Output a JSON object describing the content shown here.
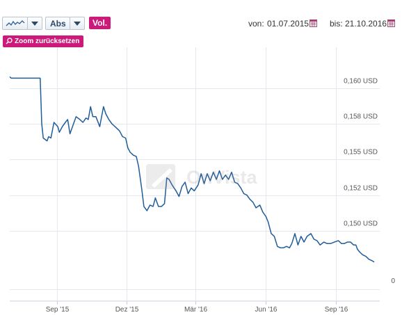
{
  "toolbar": {
    "scale_label": "Abs",
    "vol_label": "Vol.",
    "zoom_reset_label": "Zoom zurücksetzen",
    "icons": [
      "line-chart-icon",
      "chevron-down-icon",
      "calendar-icon",
      "magnifier-icon"
    ]
  },
  "range": {
    "from_label": "von:",
    "from_value": "01.07.2015",
    "to_label": "bis:",
    "to_value": "21.10.2016"
  },
  "watermark": "OnVista",
  "colors": {
    "line": "#1f5c99",
    "accent": "#cc1a7a",
    "grid": "#e3e8ee",
    "label": "#555555"
  },
  "chart_data": {
    "type": "line",
    "currency": "USD",
    "x_start": "2015-07-01",
    "x_end": "2016-10-21",
    "ylim": [
      0.1475,
      0.1615
    ],
    "y_ticks": [
      {
        "value": 0.15,
        "label": "0,150 USD"
      },
      {
        "value": 0.1525,
        "label": "0,152 USD"
      },
      {
        "value": 0.155,
        "label": "0,155 USD"
      },
      {
        "value": 0.1575,
        "label": "0,158 USD"
      },
      {
        "value": 0.16,
        "label": "0,160 USD"
      }
    ],
    "zero_label": "0",
    "x_ticks": [
      {
        "date": "2015-09-01",
        "label": "Sep '15"
      },
      {
        "date": "2015-12-01",
        "label": "Dez '15"
      },
      {
        "date": "2016-03-01",
        "label": "Mär '16"
      },
      {
        "date": "2016-06-01",
        "label": "Jun '16"
      },
      {
        "date": "2016-09-01",
        "label": "Sep '16"
      }
    ],
    "grid": true,
    "series": [
      {
        "points": [
          [
            "2015-07-01",
            0.1608
          ],
          [
            "2015-07-03",
            0.1607
          ],
          [
            "2015-07-15",
            0.1607
          ],
          [
            "2015-08-10",
            0.1607
          ],
          [
            "2015-08-12",
            0.1575
          ],
          [
            "2015-08-14",
            0.1565
          ],
          [
            "2015-08-19",
            0.1563
          ],
          [
            "2015-08-21",
            0.1566
          ],
          [
            "2015-08-24",
            0.1565
          ],
          [
            "2015-08-28",
            0.1576
          ],
          [
            "2015-09-02",
            0.1573
          ],
          [
            "2015-09-04",
            0.1569
          ],
          [
            "2015-09-08",
            0.1573
          ],
          [
            "2015-09-12",
            0.1576
          ],
          [
            "2015-09-15",
            0.1578
          ],
          [
            "2015-09-18",
            0.1568
          ],
          [
            "2015-09-22",
            0.1574
          ],
          [
            "2015-09-26",
            0.158
          ],
          [
            "2015-10-01",
            0.1578
          ],
          [
            "2015-10-05",
            0.1576
          ],
          [
            "2015-10-09",
            0.1579
          ],
          [
            "2015-10-12",
            0.1578
          ],
          [
            "2015-10-15",
            0.1587
          ],
          [
            "2015-10-18",
            0.158
          ],
          [
            "2015-10-22",
            0.158
          ],
          [
            "2015-10-27",
            0.1573
          ],
          [
            "2015-11-01",
            0.1587
          ],
          [
            "2015-11-04",
            0.1582
          ],
          [
            "2015-11-08",
            0.1578
          ],
          [
            "2015-11-12",
            0.1575
          ],
          [
            "2015-11-18",
            0.1572
          ],
          [
            "2015-11-22",
            0.157
          ],
          [
            "2015-11-26",
            0.1566
          ],
          [
            "2015-11-30",
            0.1565
          ],
          [
            "2015-12-03",
            0.1558
          ],
          [
            "2015-12-06",
            0.1555
          ],
          [
            "2015-12-10",
            0.1553
          ],
          [
            "2015-12-14",
            0.1552
          ],
          [
            "2015-12-17",
            0.1545
          ],
          [
            "2015-12-21",
            0.153
          ],
          [
            "2015-12-24",
            0.1517
          ],
          [
            "2015-12-28",
            0.1514
          ],
          [
            "2016-01-01",
            0.1518
          ],
          [
            "2016-01-05",
            0.1517
          ],
          [
            "2016-01-08",
            0.1523
          ],
          [
            "2016-01-12",
            0.1517
          ],
          [
            "2016-01-16",
            0.1517
          ],
          [
            "2016-01-20",
            0.1519
          ],
          [
            "2016-01-23",
            0.1537
          ],
          [
            "2016-01-26",
            0.1536
          ],
          [
            "2016-01-30",
            0.1532
          ],
          [
            "2016-02-04",
            0.1528
          ],
          [
            "2016-02-08",
            0.1524
          ],
          [
            "2016-02-12",
            0.1531
          ],
          [
            "2016-02-16",
            0.1534
          ],
          [
            "2016-02-20",
            0.1526
          ],
          [
            "2016-02-24",
            0.153
          ],
          [
            "2016-02-28",
            0.1528
          ],
          [
            "2016-03-04",
            0.1532
          ],
          [
            "2016-03-08",
            0.154
          ],
          [
            "2016-03-12",
            0.1533
          ],
          [
            "2016-03-16",
            0.154
          ],
          [
            "2016-03-20",
            0.1535
          ],
          [
            "2016-03-24",
            0.1541
          ],
          [
            "2016-03-28",
            0.1536
          ],
          [
            "2016-04-01",
            0.1542
          ],
          [
            "2016-04-05",
            0.1536
          ],
          [
            "2016-04-09",
            0.1539
          ],
          [
            "2016-04-13",
            0.1536
          ],
          [
            "2016-04-17",
            0.1541
          ],
          [
            "2016-04-21",
            0.1534
          ],
          [
            "2016-04-25",
            0.1533
          ],
          [
            "2016-04-29",
            0.153
          ],
          [
            "2016-05-03",
            0.1526
          ],
          [
            "2016-05-07",
            0.1525
          ],
          [
            "2016-05-11",
            0.1522
          ],
          [
            "2016-05-15",
            0.152
          ],
          [
            "2016-05-19",
            0.1516
          ],
          [
            "2016-05-24",
            0.1518
          ],
          [
            "2016-05-28",
            0.1513
          ],
          [
            "2016-06-01",
            0.151
          ],
          [
            "2016-06-04",
            0.1506
          ],
          [
            "2016-06-08",
            0.1498
          ],
          [
            "2016-06-12",
            0.1496
          ],
          [
            "2016-06-16",
            0.1489
          ],
          [
            "2016-06-20",
            0.1488
          ],
          [
            "2016-06-24",
            0.1488
          ],
          [
            "2016-06-28",
            0.1489
          ],
          [
            "2016-07-02",
            0.1488
          ],
          [
            "2016-07-05",
            0.1491
          ],
          [
            "2016-07-09",
            0.1498
          ],
          [
            "2016-07-13",
            0.149
          ],
          [
            "2016-07-17",
            0.1496
          ],
          [
            "2016-07-21",
            0.1492
          ],
          [
            "2016-07-25",
            0.1496
          ],
          [
            "2016-07-30",
            0.1498
          ],
          [
            "2016-08-03",
            0.1494
          ],
          [
            "2016-08-07",
            0.1493
          ],
          [
            "2016-08-11",
            0.149
          ],
          [
            "2016-08-16",
            0.1492
          ],
          [
            "2016-08-20",
            0.1491
          ],
          [
            "2016-08-25",
            0.1491
          ],
          [
            "2016-08-30",
            0.1492
          ],
          [
            "2016-09-04",
            0.1493
          ],
          [
            "2016-09-08",
            0.1491
          ],
          [
            "2016-09-12",
            0.1491
          ],
          [
            "2016-09-16",
            0.1492
          ],
          [
            "2016-09-20",
            0.1492
          ],
          [
            "2016-09-24",
            0.149
          ],
          [
            "2016-09-27",
            0.149
          ],
          [
            "2016-09-29",
            0.1487
          ],
          [
            "2016-10-02",
            0.1485
          ],
          [
            "2016-10-06",
            0.1483
          ],
          [
            "2016-10-10",
            0.1482
          ],
          [
            "2016-10-14",
            0.148
          ],
          [
            "2016-10-18",
            0.1479
          ],
          [
            "2016-10-21",
            0.1478
          ]
        ]
      }
    ]
  }
}
